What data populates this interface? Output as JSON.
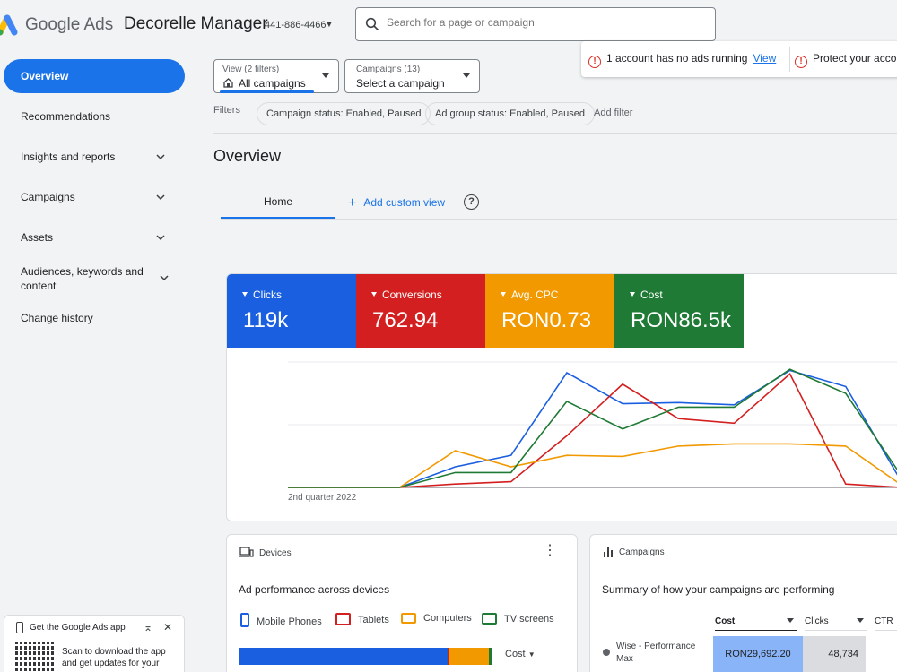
{
  "header": {
    "brand": "Google Ads",
    "account_name": "Decorelle Manager",
    "account_id": "441-886-4466",
    "search_placeholder": "Search for a page or campaign"
  },
  "alerts": [
    {
      "text": "1 account has no ads running",
      "link": "View"
    },
    {
      "text": "Protect your account"
    }
  ],
  "sidebar": {
    "items": [
      {
        "label": "Overview",
        "active": true
      },
      {
        "label": "Recommendations"
      },
      {
        "label": "Insights and reports"
      },
      {
        "label": "Campaigns"
      },
      {
        "label": "Assets"
      },
      {
        "label": "Audiences, keywords and content"
      },
      {
        "label": "Change history"
      }
    ],
    "app_card": {
      "title": "Get the Google Ads app",
      "desc": "Scan to download the app and get updates for your"
    }
  },
  "selectors": {
    "view": {
      "label": "View (2 filters)",
      "value": "All campaigns"
    },
    "campaigns": {
      "label": "Campaigns (13)",
      "value": "Select a campaign"
    }
  },
  "filters": {
    "label": "Filters",
    "chips": [
      "Campaign status: Enabled, Paused",
      "Ad group status: Enabled, Paused"
    ],
    "add": "Add filter"
  },
  "page": {
    "title": "Overview",
    "tab_home": "Home",
    "add_custom_view": "Add custom view"
  },
  "metrics": [
    {
      "label": "Clicks",
      "value": "119k",
      "color": "#1a5fe0"
    },
    {
      "label": "Conversions",
      "value": "762.94",
      "color": "#d31f1f"
    },
    {
      "label": "Avg. CPC",
      "value": "RON0.73",
      "color": "#f29900"
    },
    {
      "label": "Cost",
      "value": "RON86.5k",
      "color": "#1e7a34"
    }
  ],
  "chart_data": {
    "type": "line",
    "x_label_visible": "2nd quarter 2022",
    "x": [
      0,
      1,
      2,
      3,
      4,
      5,
      6,
      7,
      8,
      9,
      10,
      11
    ],
    "series": [
      {
        "color": "#1a5fe0",
        "values": [
          0,
          0,
          0,
          0.18,
          0.28,
          1.0,
          0.73,
          0.74,
          0.72,
          1.02,
          0.88,
          0.05
        ]
      },
      {
        "color": "#d31f1f",
        "values": [
          0,
          0,
          0,
          0.03,
          0.05,
          0.45,
          0.9,
          0.6,
          0.56,
          0.99,
          0.03,
          0.0
        ]
      },
      {
        "color": "#f29900",
        "values": [
          0,
          0,
          0,
          0.32,
          0.18,
          0.28,
          0.27,
          0.36,
          0.38,
          0.38,
          0.36,
          0.02
        ]
      },
      {
        "color": "#1e7a34",
        "values": [
          0,
          0,
          0,
          0.13,
          0.13,
          0.75,
          0.51,
          0.7,
          0.7,
          1.03,
          0.82,
          0.1
        ]
      }
    ]
  },
  "devices_card": {
    "title": "Devices",
    "subtitle": "Ad performance across devices",
    "legend": [
      {
        "label": "Mobile Phones",
        "color": "#1a5fe0"
      },
      {
        "label": "Tablets",
        "color": "#d31f1f"
      },
      {
        "label": "Computers",
        "color": "#f29900"
      },
      {
        "label": "TV screens",
        "color": "#1e7a34"
      }
    ],
    "shares": [
      0.828,
      0.007,
      0.154,
      0.011
    ],
    "metric": "Cost"
  },
  "campaigns_card": {
    "title": "Campaigns",
    "subtitle": "Summary of how your campaigns are performing",
    "columns": [
      "Cost",
      "Clicks",
      "CTR"
    ],
    "row": {
      "name": "Wise - Performance Max",
      "cost": "RON29,692.20",
      "clicks": "48,734"
    }
  }
}
